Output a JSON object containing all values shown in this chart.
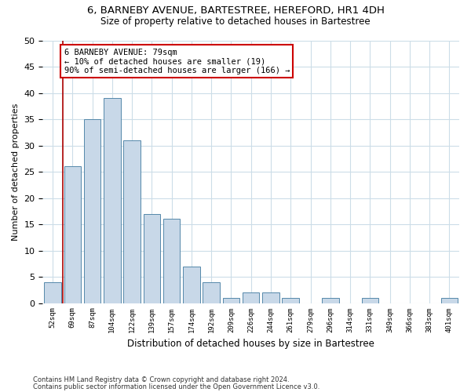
{
  "title": "6, BARNEBY AVENUE, BARTESTREE, HEREFORD, HR1 4DH",
  "subtitle": "Size of property relative to detached houses in Bartestree",
  "xlabel": "Distribution of detached houses by size in Bartestree",
  "ylabel": "Number of detached properties",
  "bar_color": "#c8d8e8",
  "bar_edge_color": "#5588aa",
  "categories": [
    "52sqm",
    "69sqm",
    "87sqm",
    "104sqm",
    "122sqm",
    "139sqm",
    "157sqm",
    "174sqm",
    "192sqm",
    "209sqm",
    "226sqm",
    "244sqm",
    "261sqm",
    "279sqm",
    "296sqm",
    "314sqm",
    "331sqm",
    "349sqm",
    "366sqm",
    "383sqm",
    "401sqm"
  ],
  "values": [
    4,
    26,
    35,
    39,
    31,
    17,
    16,
    7,
    4,
    1,
    2,
    2,
    1,
    0,
    1,
    0,
    1,
    0,
    0,
    0,
    1
  ],
  "ylim": [
    0,
    50
  ],
  "yticks": [
    0,
    5,
    10,
    15,
    20,
    25,
    30,
    35,
    40,
    45,
    50
  ],
  "vline_x": 0.5,
  "vline_color": "#aa0000",
  "annotation_text": "6 BARNEBY AVENUE: 79sqm\n← 10% of detached houses are smaller (19)\n90% of semi-detached houses are larger (166) →",
  "annotation_box_color": "#ffffff",
  "annotation_box_edge_color": "#cc0000",
  "footnote1": "Contains HM Land Registry data © Crown copyright and database right 2024.",
  "footnote2": "Contains public sector information licensed under the Open Government Licence v3.0.",
  "bg_color": "#ffffff",
  "grid_color": "#ccdde8"
}
